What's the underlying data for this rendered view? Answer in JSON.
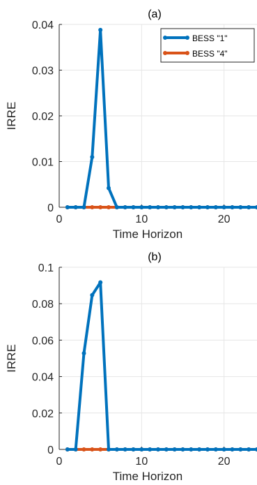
{
  "colors": {
    "series1": "#0072BD",
    "series2": "#D95319",
    "grid": "#e6e6e6",
    "axis": "#262626"
  },
  "chart_data": [
    {
      "type": "line",
      "title": "(a)",
      "xlabel": "Time Horizon",
      "ylabel": "IRRE",
      "xlim": [
        0,
        24
      ],
      "ylim": [
        0,
        0.04
      ],
      "xticks": [
        0,
        10,
        20
      ],
      "xtick_labels": [
        "0",
        "10",
        "20"
      ],
      "yticks": [
        0,
        0.01,
        0.02,
        0.03,
        0.04
      ],
      "ytick_labels": [
        "0",
        "0.01",
        "0.02",
        "0.03",
        "0.04"
      ],
      "grid": true,
      "legend_position": "top-right",
      "x": [
        1,
        2,
        3,
        4,
        5,
        6,
        7,
        8,
        9,
        10,
        11,
        12,
        13,
        14,
        15,
        16,
        17,
        18,
        19,
        20,
        21,
        22,
        23,
        24
      ],
      "series": [
        {
          "name": "BESS \"1\"",
          "values": [
            0,
            0,
            0,
            0.011,
            0.0388,
            0.0042,
            0,
            0,
            0,
            0,
            0,
            0,
            0,
            0,
            0,
            0,
            0,
            0,
            0,
            0,
            0,
            0,
            0,
            0
          ]
        },
        {
          "name": "BESS \"4\"",
          "values": [
            0,
            0,
            0,
            0,
            0,
            0,
            0,
            0,
            0,
            0,
            0,
            0,
            0,
            0,
            0,
            0,
            0,
            0,
            0,
            0,
            0,
            0,
            0,
            0
          ]
        }
      ]
    },
    {
      "type": "line",
      "title": "(b)",
      "xlabel": "Time Horizon",
      "ylabel": "IRRE",
      "xlim": [
        0,
        24
      ],
      "ylim": [
        0,
        0.1
      ],
      "xticks": [
        0,
        10,
        20
      ],
      "xtick_labels": [
        "0",
        "10",
        "20"
      ],
      "yticks": [
        0,
        0.02,
        0.04,
        0.06,
        0.08,
        0.1
      ],
      "ytick_labels": [
        "0",
        "0.02",
        "0.04",
        "0.06",
        "0.08",
        "0.1"
      ],
      "grid": true,
      "x": [
        1,
        2,
        3,
        4,
        5,
        6,
        7,
        8,
        9,
        10,
        11,
        12,
        13,
        14,
        15,
        16,
        17,
        18,
        19,
        20,
        21,
        22,
        23,
        24
      ],
      "series": [
        {
          "name": "BESS \"1\"",
          "values": [
            0,
            0,
            0.0528,
            0.0847,
            0.0917,
            0,
            0,
            0,
            0,
            0,
            0,
            0,
            0,
            0,
            0,
            0,
            0,
            0,
            0,
            0,
            0,
            0,
            0,
            0
          ]
        },
        {
          "name": "BESS \"4\"",
          "values": [
            0,
            0,
            0,
            0,
            0,
            0,
            0,
            0,
            0,
            0,
            0,
            0,
            0,
            0,
            0,
            0,
            0,
            0,
            0,
            0,
            0,
            0,
            0,
            0
          ]
        }
      ]
    }
  ]
}
